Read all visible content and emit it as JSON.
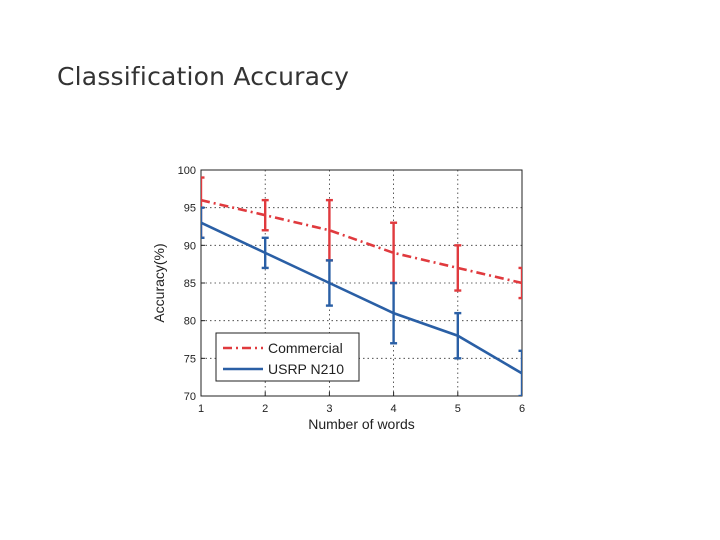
{
  "slide": {
    "title": "Classification Accuracy"
  },
  "chart_data": {
    "type": "line",
    "xlabel": "Number of words",
    "ylabel": "Accuracy(%)",
    "x": [
      1,
      2,
      3,
      4,
      5,
      6
    ],
    "xlim": [
      1,
      6
    ],
    "ylim": [
      70,
      100
    ],
    "xticks": [
      1,
      2,
      3,
      4,
      5,
      6
    ],
    "yticks": [
      70,
      75,
      80,
      85,
      90,
      95,
      100
    ],
    "grid": true,
    "legend_position": "bottom-left",
    "series": [
      {
        "name": "Commercial",
        "color": "#e03a3e",
        "linestyle": "dash-dot",
        "values": [
          96,
          94,
          92,
          89,
          87,
          85
        ],
        "err_low": [
          91,
          92,
          88,
          85,
          84,
          83
        ],
        "err_high": [
          99,
          96,
          96,
          93,
          90,
          87
        ]
      },
      {
        "name": "USRP N210",
        "color": "#2a5fa5",
        "linestyle": "solid",
        "values": [
          93,
          89,
          85,
          81,
          78,
          73
        ],
        "err_low": [
          91,
          87,
          82,
          77,
          75,
          70
        ],
        "err_high": [
          95,
          91,
          88,
          85,
          81,
          76
        ]
      }
    ]
  }
}
